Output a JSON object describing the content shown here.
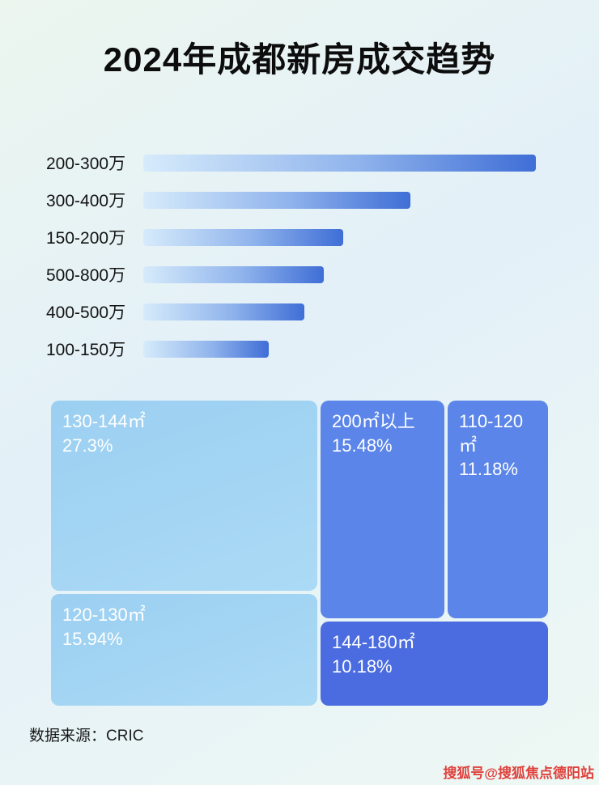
{
  "title": "2024年成都新房成交趋势",
  "chart_data": [
    {
      "type": "bar",
      "orientation": "horizontal",
      "title": "2024年成都新房成交趋势",
      "categories": [
        "200-300万",
        "300-400万",
        "150-200万",
        "500-800万",
        "400-500万",
        "100-150万"
      ],
      "values": [
        100,
        68,
        51,
        46,
        41,
        32
      ],
      "xlabel": "",
      "ylabel": "",
      "axis_note": "no numeric axis shown; values are relative bar lengths (max = 100)",
      "grid": false,
      "legend": false
    },
    {
      "type": "treemap",
      "items": [
        {
          "label": "130-144㎡",
          "percent": 27.3,
          "display": "27.3%"
        },
        {
          "label": "120-130㎡",
          "percent": 15.94,
          "display": "15.94%"
        },
        {
          "label": "200㎡以上",
          "percent": 15.48,
          "display": "15.48%"
        },
        {
          "label": "110-120㎡",
          "percent": 11.18,
          "display": "11.18%"
        },
        {
          "label": "144-180㎡",
          "percent": 10.18,
          "display": "10.18%"
        }
      ]
    }
  ],
  "footer": {
    "source": "数据来源：CRIC"
  },
  "watermark": "搜狐号@搜狐焦点德阳站",
  "colors": {
    "bar_gradient_start": "#d6ebfb",
    "bar_gradient_end": "#3f6ed6",
    "treemap_light": "#a3d5f3",
    "treemap_medium": "#5b85e8",
    "treemap_dark": "#4a6ce0",
    "watermark_red": "#e0413c",
    "title_text": "#0d0d0d"
  }
}
